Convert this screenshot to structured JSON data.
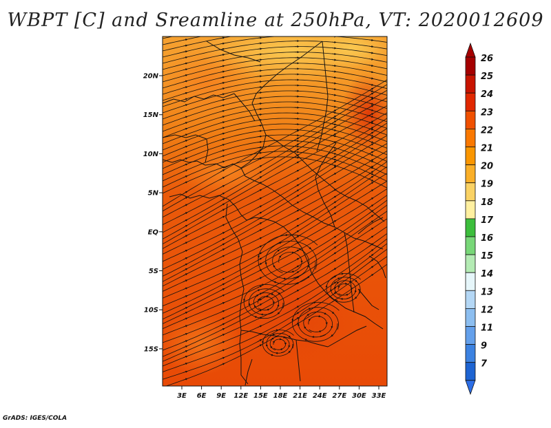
{
  "title": "WBPT [C] and Sreamline at 250hPa, VT: 2020012609",
  "footer": "GrADS: IGES/COLA",
  "map": {
    "lon_labels": [
      "3E",
      "6E",
      "9E",
      "12E",
      "15E",
      "18E",
      "21E",
      "24E",
      "27E",
      "30E",
      "33E"
    ],
    "lat_labels": [
      "20N",
      "15N",
      "10N",
      "5N",
      "EQ",
      "5S",
      "10S",
      "15S"
    ]
  },
  "colorbar": {
    "labels": [
      "26",
      "25",
      "24",
      "23",
      "22",
      "21",
      "20",
      "19",
      "18",
      "17",
      "16",
      "15",
      "14",
      "13",
      "12",
      "11",
      "9",
      "7"
    ],
    "colors": [
      "#a50000",
      "#c81400",
      "#e12800",
      "#f05000",
      "#fa7800",
      "#fa9600",
      "#faaf28",
      "#fad264",
      "#fff0a0",
      "#3cbe3c",
      "#78d778",
      "#b4ebb4",
      "#e6f6fa",
      "#b4d7f5",
      "#8cbef0",
      "#64a0eb",
      "#3c82e1",
      "#1e64d2",
      "#2d6ee6"
    ]
  }
}
